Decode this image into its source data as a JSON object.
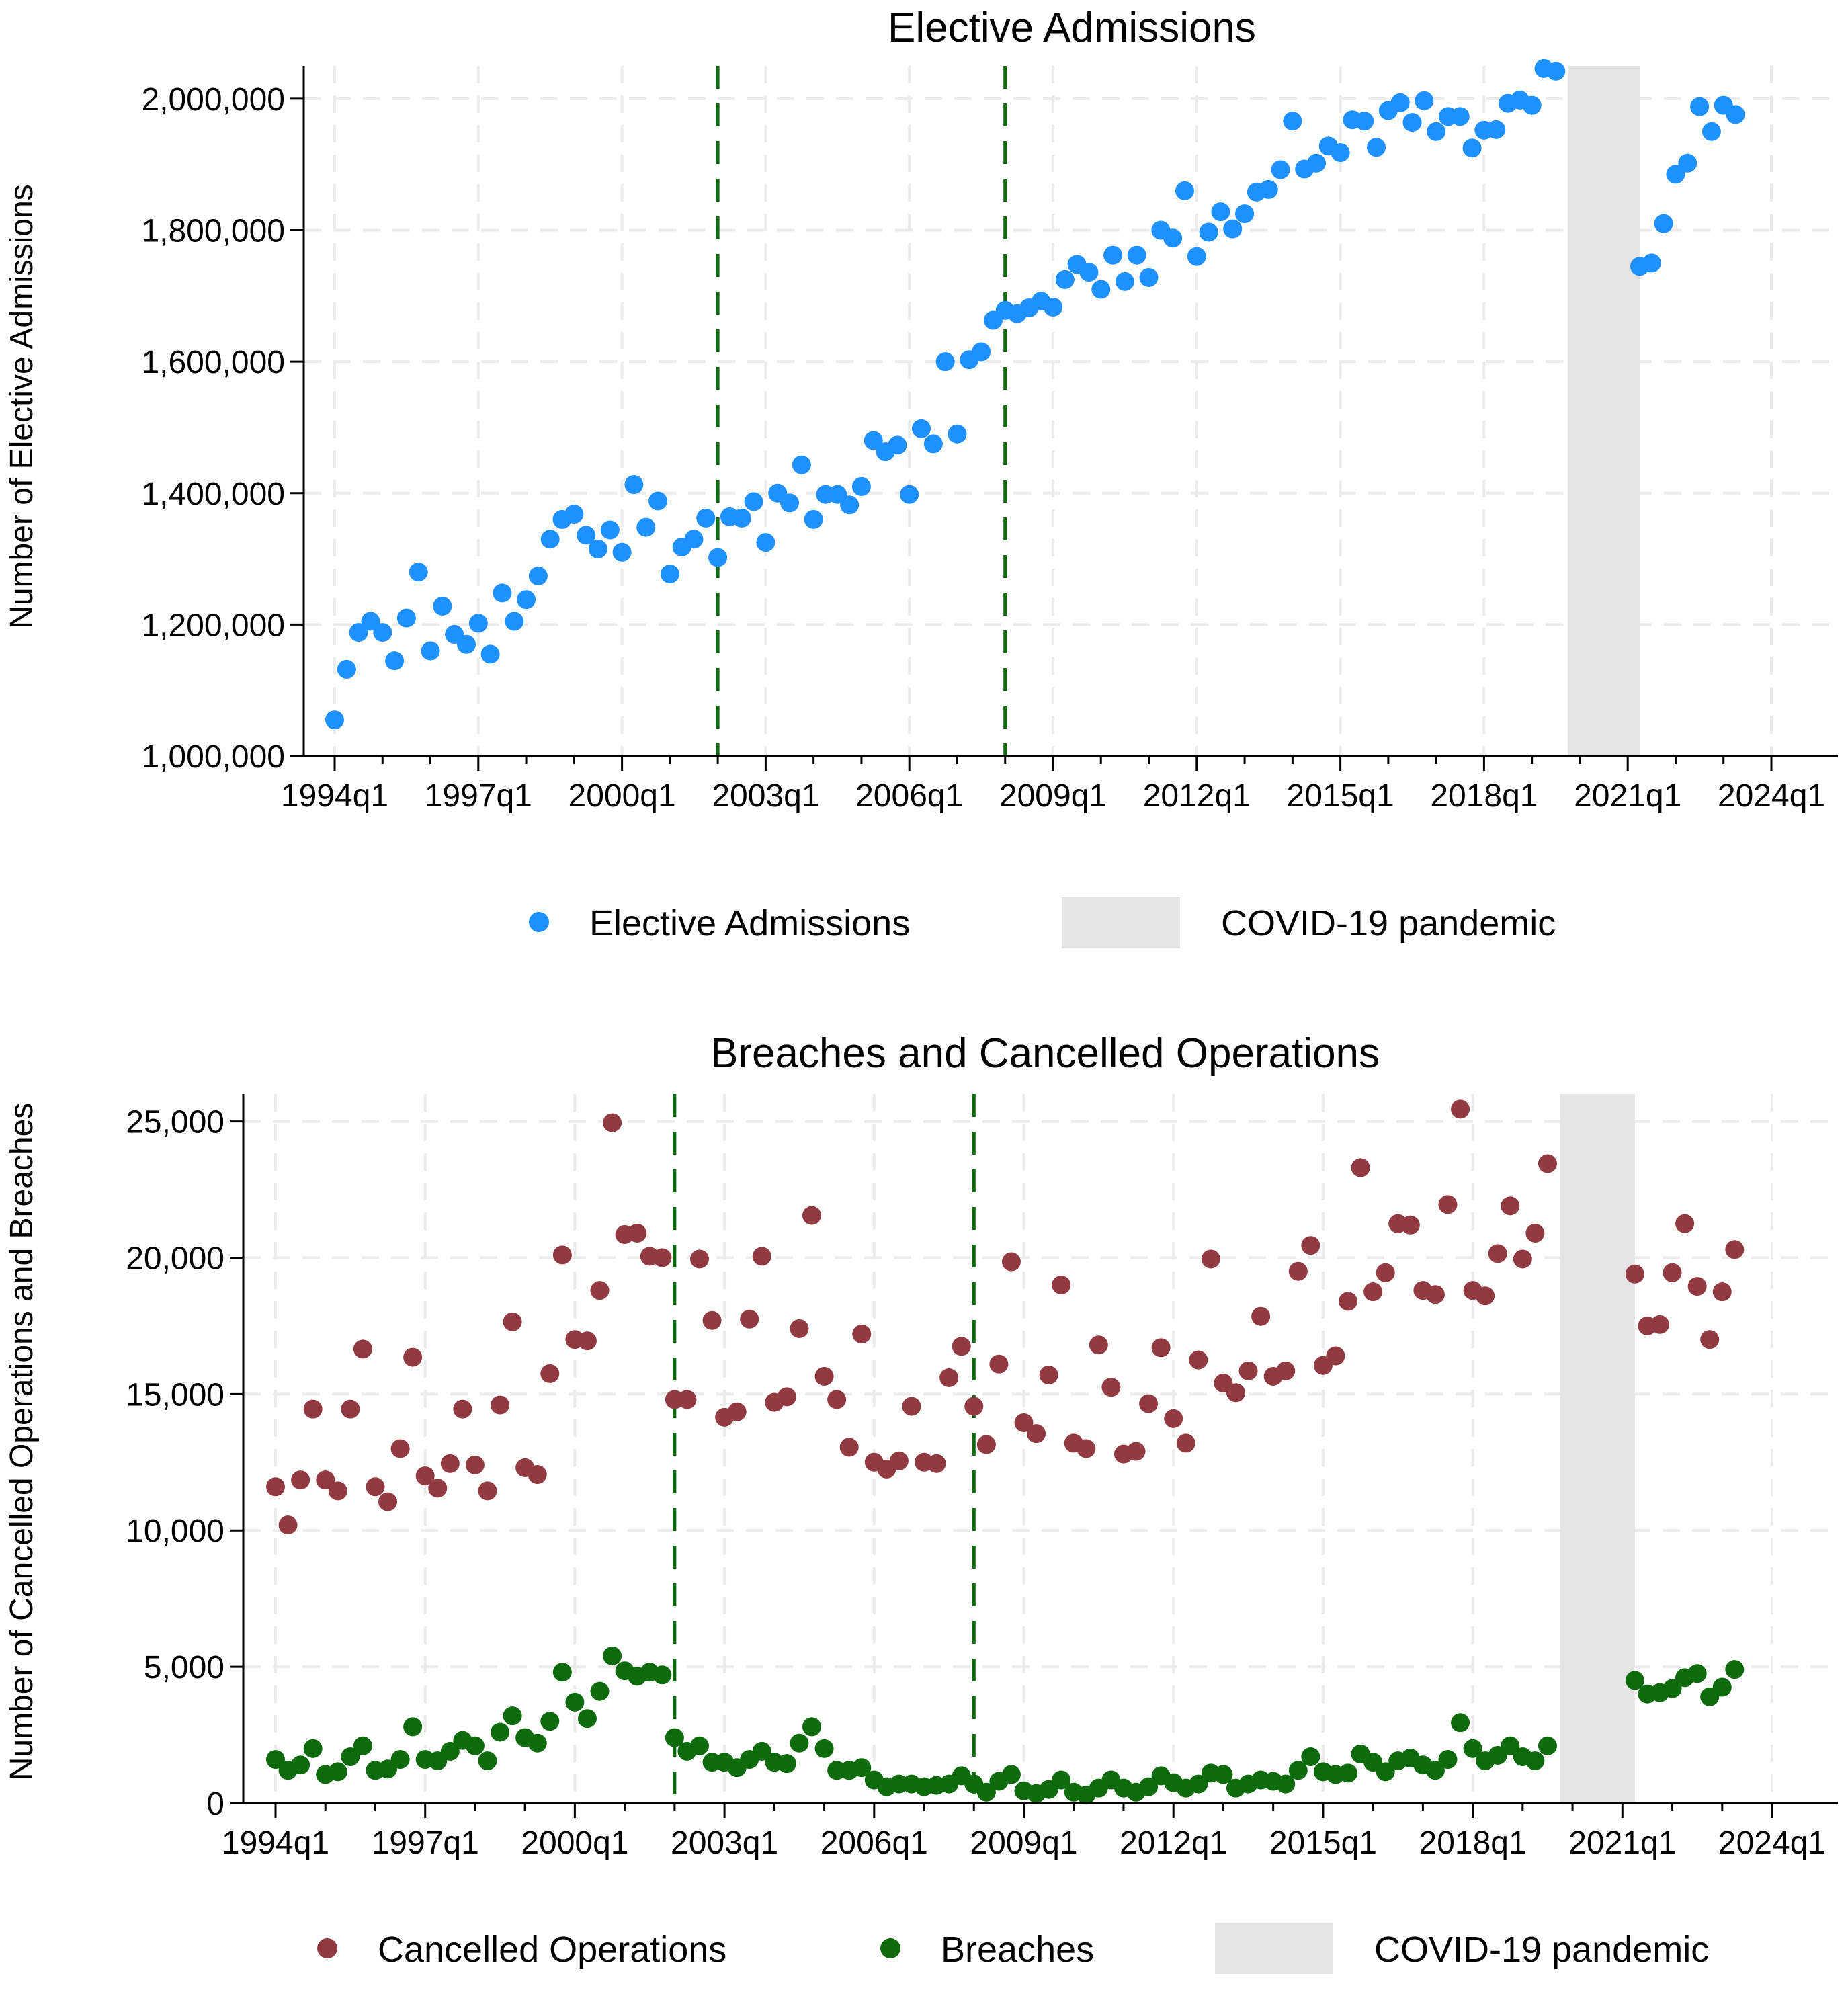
{
  "colors": {
    "elective": "#1e90ff",
    "cancelled": "#923a42",
    "breaches": "#0d6b0d",
    "covid_band": "#e4e4e4",
    "policy_lines": "#0d6b0d",
    "grid": "#ebebeb"
  },
  "chart_data": [
    {
      "type": "scatter",
      "title": "Elective Admissions",
      "xlabel": "",
      "ylabel": "Number of Elective Admissions",
      "x_ticks": [
        "1994q1",
        "1997q1",
        "2000q1",
        "2003q1",
        "2006q1",
        "2009q1",
        "2012q1",
        "2015q1",
        "2018q1",
        "2021q1",
        "2024q1"
      ],
      "y_ticks": [
        "1,000,000",
        "1,200,000",
        "1,400,000",
        "1,600,000",
        "1,800,000",
        "2,000,000"
      ],
      "xlim": [
        "1994q1",
        "2024q1"
      ],
      "ylim": [
        1000000,
        2050000
      ],
      "grid": true,
      "vertical_reference_lines": [
        "2002q1",
        "2008q1"
      ],
      "shaded_period": {
        "label": "COVID-19 pandemic",
        "start": "2019q4",
        "end": "2021q2"
      },
      "legend": [
        "Elective Admissions",
        "COVID-19 pandemic"
      ],
      "legend_position": "bottom",
      "series": [
        {
          "name": "Elective Admissions",
          "start": "1994q1",
          "values": [
            1055000,
            1132000,
            1188000,
            1205000,
            1188000,
            1145000,
            1210000,
            1280000,
            1160000,
            1228000,
            1185000,
            1170000,
            1202000,
            1155000,
            1248000,
            1205000,
            1238000,
            1274000,
            1330000,
            1360000,
            1368000,
            1336000,
            1315000,
            1344000,
            1310000,
            1413000,
            1348000,
            1388000,
            1277000,
            1318000,
            1330000,
            1362000,
            1302000,
            1364000,
            1362000,
            1387000,
            1325000,
            1400000,
            1385000,
            1443000,
            1360000,
            1398000,
            1398000,
            1382000,
            1410000,
            1480000,
            1463000,
            1473000,
            1398000,
            1498000,
            1475000,
            1600000,
            1490000,
            1603000,
            1615000,
            1663000,
            1678000,
            1673000,
            1682000,
            1692000,
            1683000,
            1725000,
            1748000,
            1736000,
            1710000,
            1762000,
            1722000,
            1762000,
            1728000,
            1800000,
            1788000,
            1860000,
            1760000,
            1797000,
            1828000,
            1802000,
            1825000,
            1858000,
            1862000,
            1892000,
            1966000,
            1893000,
            1902000,
            1928000,
            1918000,
            1968000,
            1966000,
            1926000,
            1982000,
            1994000,
            1964000,
            1997000,
            1950000,
            1973000,
            1973000,
            1925000,
            1952000,
            1953000,
            1993000,
            1998000,
            1990000,
            2046000,
            2042000,
            null,
            null,
            null,
            null,
            null,
            null,
            1745000,
            1750000,
            1810000,
            1885000,
            1902000,
            1988000,
            1950000,
            1990000,
            1976000
          ]
        }
      ]
    },
    {
      "type": "scatter",
      "title": "Breaches and Cancelled Operations",
      "xlabel": "",
      "ylabel": "Number of Cancelled Operations and Breaches",
      "x_ticks": [
        "1994q1",
        "1997q1",
        "2000q1",
        "2003q1",
        "2006q1",
        "2009q1",
        "2012q1",
        "2015q1",
        "2018q1",
        "2021q1",
        "2024q1"
      ],
      "y_ticks": [
        "0",
        "5,000",
        "10,000",
        "15,000",
        "20,000",
        "25,000"
      ],
      "xlim": [
        "1994q1",
        "2024q1"
      ],
      "ylim": [
        0,
        26000
      ],
      "grid": true,
      "vertical_reference_lines": [
        "2002q1",
        "2008q1"
      ],
      "shaded_period": {
        "label": "COVID-19 pandemic",
        "start": "2019q4",
        "end": "2021q2"
      },
      "legend": [
        "Cancelled Operations",
        "Breaches",
        "COVID-19 pandemic"
      ],
      "legend_position": "bottom",
      "series": [
        {
          "name": "Cancelled Operations",
          "start": "1994q1",
          "values": [
            11600,
            10200,
            11850,
            14450,
            11850,
            11450,
            14450,
            16650,
            11600,
            11050,
            13000,
            16350,
            12000,
            11550,
            12450,
            14450,
            12400,
            11450,
            14600,
            17650,
            12300,
            12050,
            15750,
            20100,
            17000,
            16950,
            18800,
            24950,
            20850,
            20900,
            20050,
            20000,
            14800,
            14800,
            19950,
            17700,
            14150,
            14350,
            17750,
            20050,
            14700,
            14900,
            17400,
            21550,
            15650,
            14800,
            13050,
            17200,
            12500,
            12250,
            12550,
            14550,
            12500,
            12450,
            15600,
            16750,
            14550,
            13150,
            16100,
            19850,
            13950,
            13550,
            15700,
            19000,
            13200,
            13000,
            16800,
            15250,
            12800,
            12900,
            14650,
            16700,
            14100,
            13200,
            16250,
            19950,
            15400,
            15050,
            15850,
            17850,
            15650,
            15850,
            19500,
            20450,
            16050,
            16400,
            18400,
            23300,
            18750,
            19450,
            21250,
            21200,
            18800,
            18650,
            21950,
            25450,
            18800,
            18600,
            20150,
            21900,
            19950,
            20900,
            23450,
            null,
            null,
            null,
            null,
            null,
            null,
            19400,
            17500,
            17550,
            19450,
            21250,
            18950,
            17000,
            18750,
            20300
          ]
        },
        {
          "name": "Breaches",
          "start": "1994q1",
          "values": [
            1600,
            1200,
            1400,
            2000,
            1050,
            1150,
            1700,
            2100,
            1200,
            1250,
            1600,
            2800,
            1600,
            1550,
            1900,
            2300,
            2100,
            1550,
            2600,
            3200,
            2400,
            2200,
            3000,
            4800,
            3700,
            3100,
            4100,
            5400,
            4850,
            4650,
            4800,
            4700,
            2400,
            1900,
            2100,
            1500,
            1500,
            1300,
            1600,
            1900,
            1500,
            1450,
            2200,
            2800,
            2000,
            1200,
            1200,
            1300,
            850,
            600,
            700,
            700,
            600,
            650,
            700,
            1000,
            700,
            400,
            800,
            1050,
            450,
            350,
            500,
            850,
            400,
            300,
            550,
            850,
            550,
            400,
            600,
            1000,
            750,
            550,
            700,
            1100,
            1050,
            550,
            700,
            850,
            800,
            700,
            1200,
            1700,
            1150,
            1050,
            1100,
            1800,
            1500,
            1150,
            1550,
            1650,
            1400,
            1200,
            1600,
            2950,
            2000,
            1550,
            1750,
            2100,
            1700,
            1550,
            2100,
            null,
            null,
            null,
            null,
            null,
            null,
            4500,
            4000,
            4050,
            4200,
            4600,
            4750,
            3900,
            4250,
            4900
          ]
        }
      ]
    }
  ]
}
